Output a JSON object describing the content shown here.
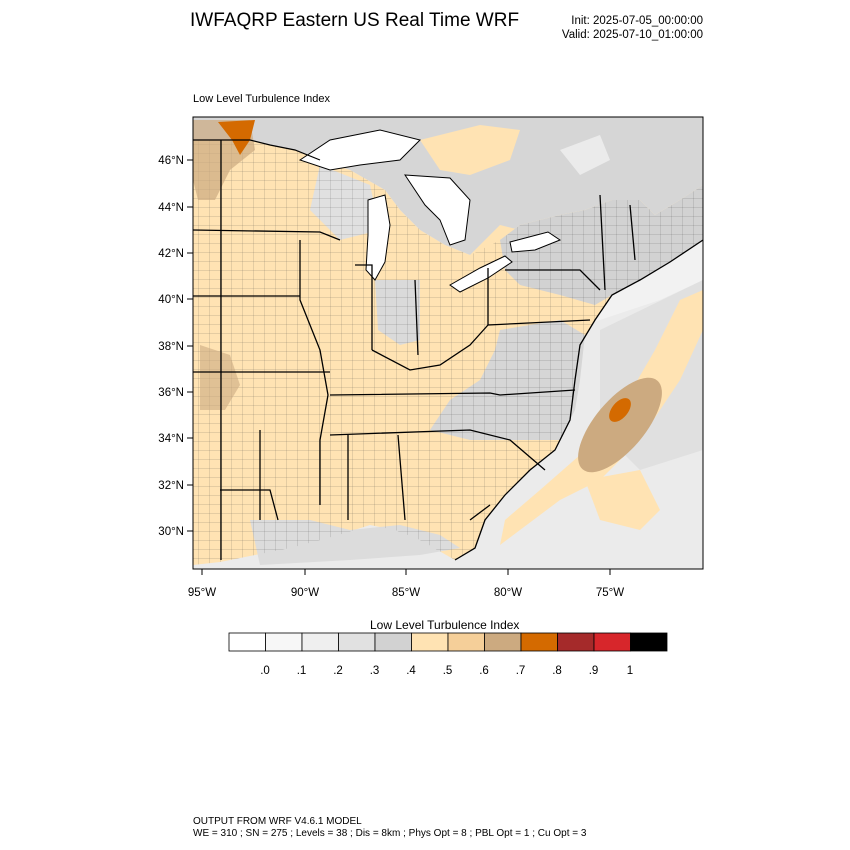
{
  "header": {
    "title": "IWFAQRP Eastern US Real Time WRF",
    "init": "Init: 2025-07-05_00:00:00",
    "valid": "Valid: 2025-07-10_01:00:00"
  },
  "plot": {
    "field_label": "Low Level Turbulence Index",
    "lat_ticks": [
      "46°N",
      "44°N",
      "42°N",
      "40°N",
      "38°N",
      "36°N",
      "34°N",
      "32°N",
      "30°N"
    ],
    "lon_ticks": [
      "95°W",
      "90°W",
      "85°W",
      "80°W",
      "75°W"
    ]
  },
  "colorbar": {
    "title": "Low Level Turbulence Index",
    "tick_labels": [
      ".0",
      ".1",
      ".2",
      ".3",
      ".4",
      ".5",
      ".6",
      ".7",
      ".8",
      ".9",
      "1"
    ],
    "colors": [
      "#ffffff",
      "#f7f7f7",
      "#efefef",
      "#e1e1e1",
      "#d2d2d2",
      "#ffe3b3",
      "#f5cf99",
      "#ccaa80",
      "#d46a00",
      "#a52a2a",
      "#d7262b",
      "#000000"
    ]
  },
  "footer": {
    "line1": "OUTPUT FROM WRF V4.6.1 MODEL",
    "line2": "WE = 310 ; SN = 275 ; Levels = 38 ; Dis = 8km ; Phys Opt = 8 ; PBL Opt = 1 ; Cu Opt = 3"
  }
}
